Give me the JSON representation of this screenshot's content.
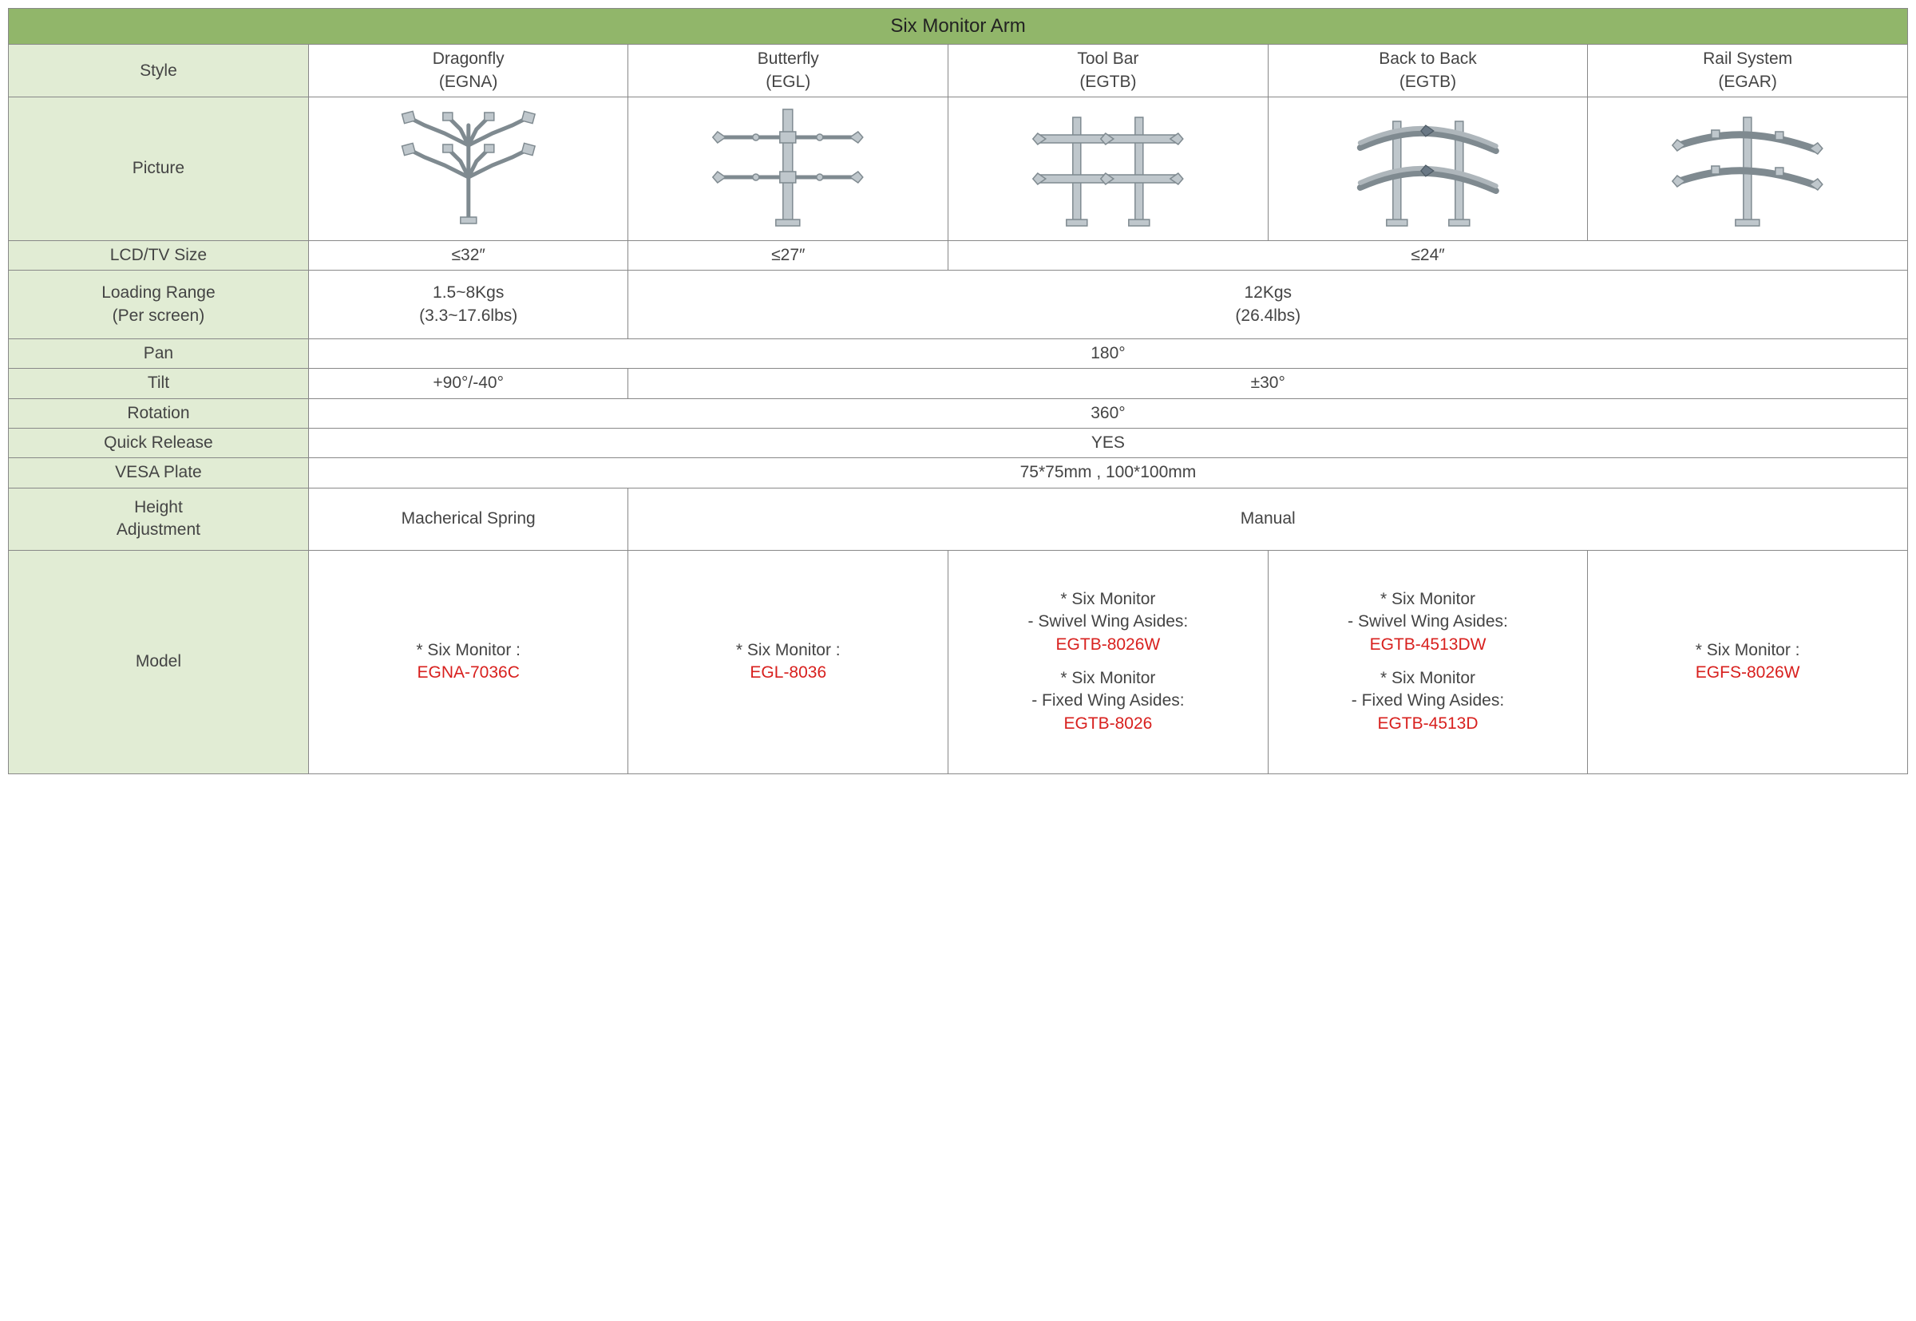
{
  "colors": {
    "title_bg": "#91b66a",
    "label_bg": "#e1ecd4",
    "border": "#888888",
    "text": "#444444",
    "model_code": "#d8201e",
    "arm_fill": "#bfc7cc",
    "arm_stroke": "#7f8a90"
  },
  "title": "Six Monitor Arm",
  "row_labels": {
    "style": "Style",
    "picture": "Picture",
    "lcd": "LCD/TV Size",
    "loading": "Loading Range\n(Per screen)",
    "pan": "Pan",
    "tilt": "Tilt",
    "rotation": "Rotation",
    "quick_release": "Quick Release",
    "vesa": "VESA Plate",
    "height_adj": "Height\nAdjustment",
    "model": "Model"
  },
  "styles": [
    "Dragonfly\n(EGNA)",
    "Butterfly\n(EGL)",
    "Tool Bar\n(EGTB)",
    "Back to Back\n(EGTB)",
    "Rail System\n(EGAR)"
  ],
  "lcd": {
    "c1": "≤32″",
    "c2": "≤27″",
    "c345": "≤24″"
  },
  "loading": {
    "c1": "1.5~8Kgs\n(3.3~17.6lbs)",
    "c2345": "12Kgs\n(26.4lbs)"
  },
  "pan": "180°",
  "tilt": {
    "c1": "+90°/-40°",
    "c2345": "±30°"
  },
  "rotation": "360°",
  "quick_release": "YES",
  "vesa": "75*75mm , 100*100mm",
  "height_adj": {
    "c1": "Macherical Spring",
    "c2345": "Manual"
  },
  "models": {
    "c1": [
      {
        "label": "* Six Monitor :",
        "code": "EGNA-7036C"
      }
    ],
    "c2": [
      {
        "label": "* Six Monitor :",
        "code": "EGL-8036"
      }
    ],
    "c3": [
      {
        "label": "* Six Monitor\n- Swivel Wing Asides:",
        "code": "EGTB-8026W"
      },
      {
        "label": "* Six Monitor\n- Fixed Wing Asides:",
        "code": "EGTB-8026"
      }
    ],
    "c4": [
      {
        "label": "* Six Monitor\n- Swivel Wing Asides:",
        "code": "EGTB-4513DW"
      },
      {
        "label": "* Six Monitor\n- Fixed Wing Asides:",
        "code": "EGTB-4513D"
      }
    ],
    "c5": [
      {
        "label": "* Six Monitor :",
        "code": "EGFS-8026W"
      }
    ]
  }
}
